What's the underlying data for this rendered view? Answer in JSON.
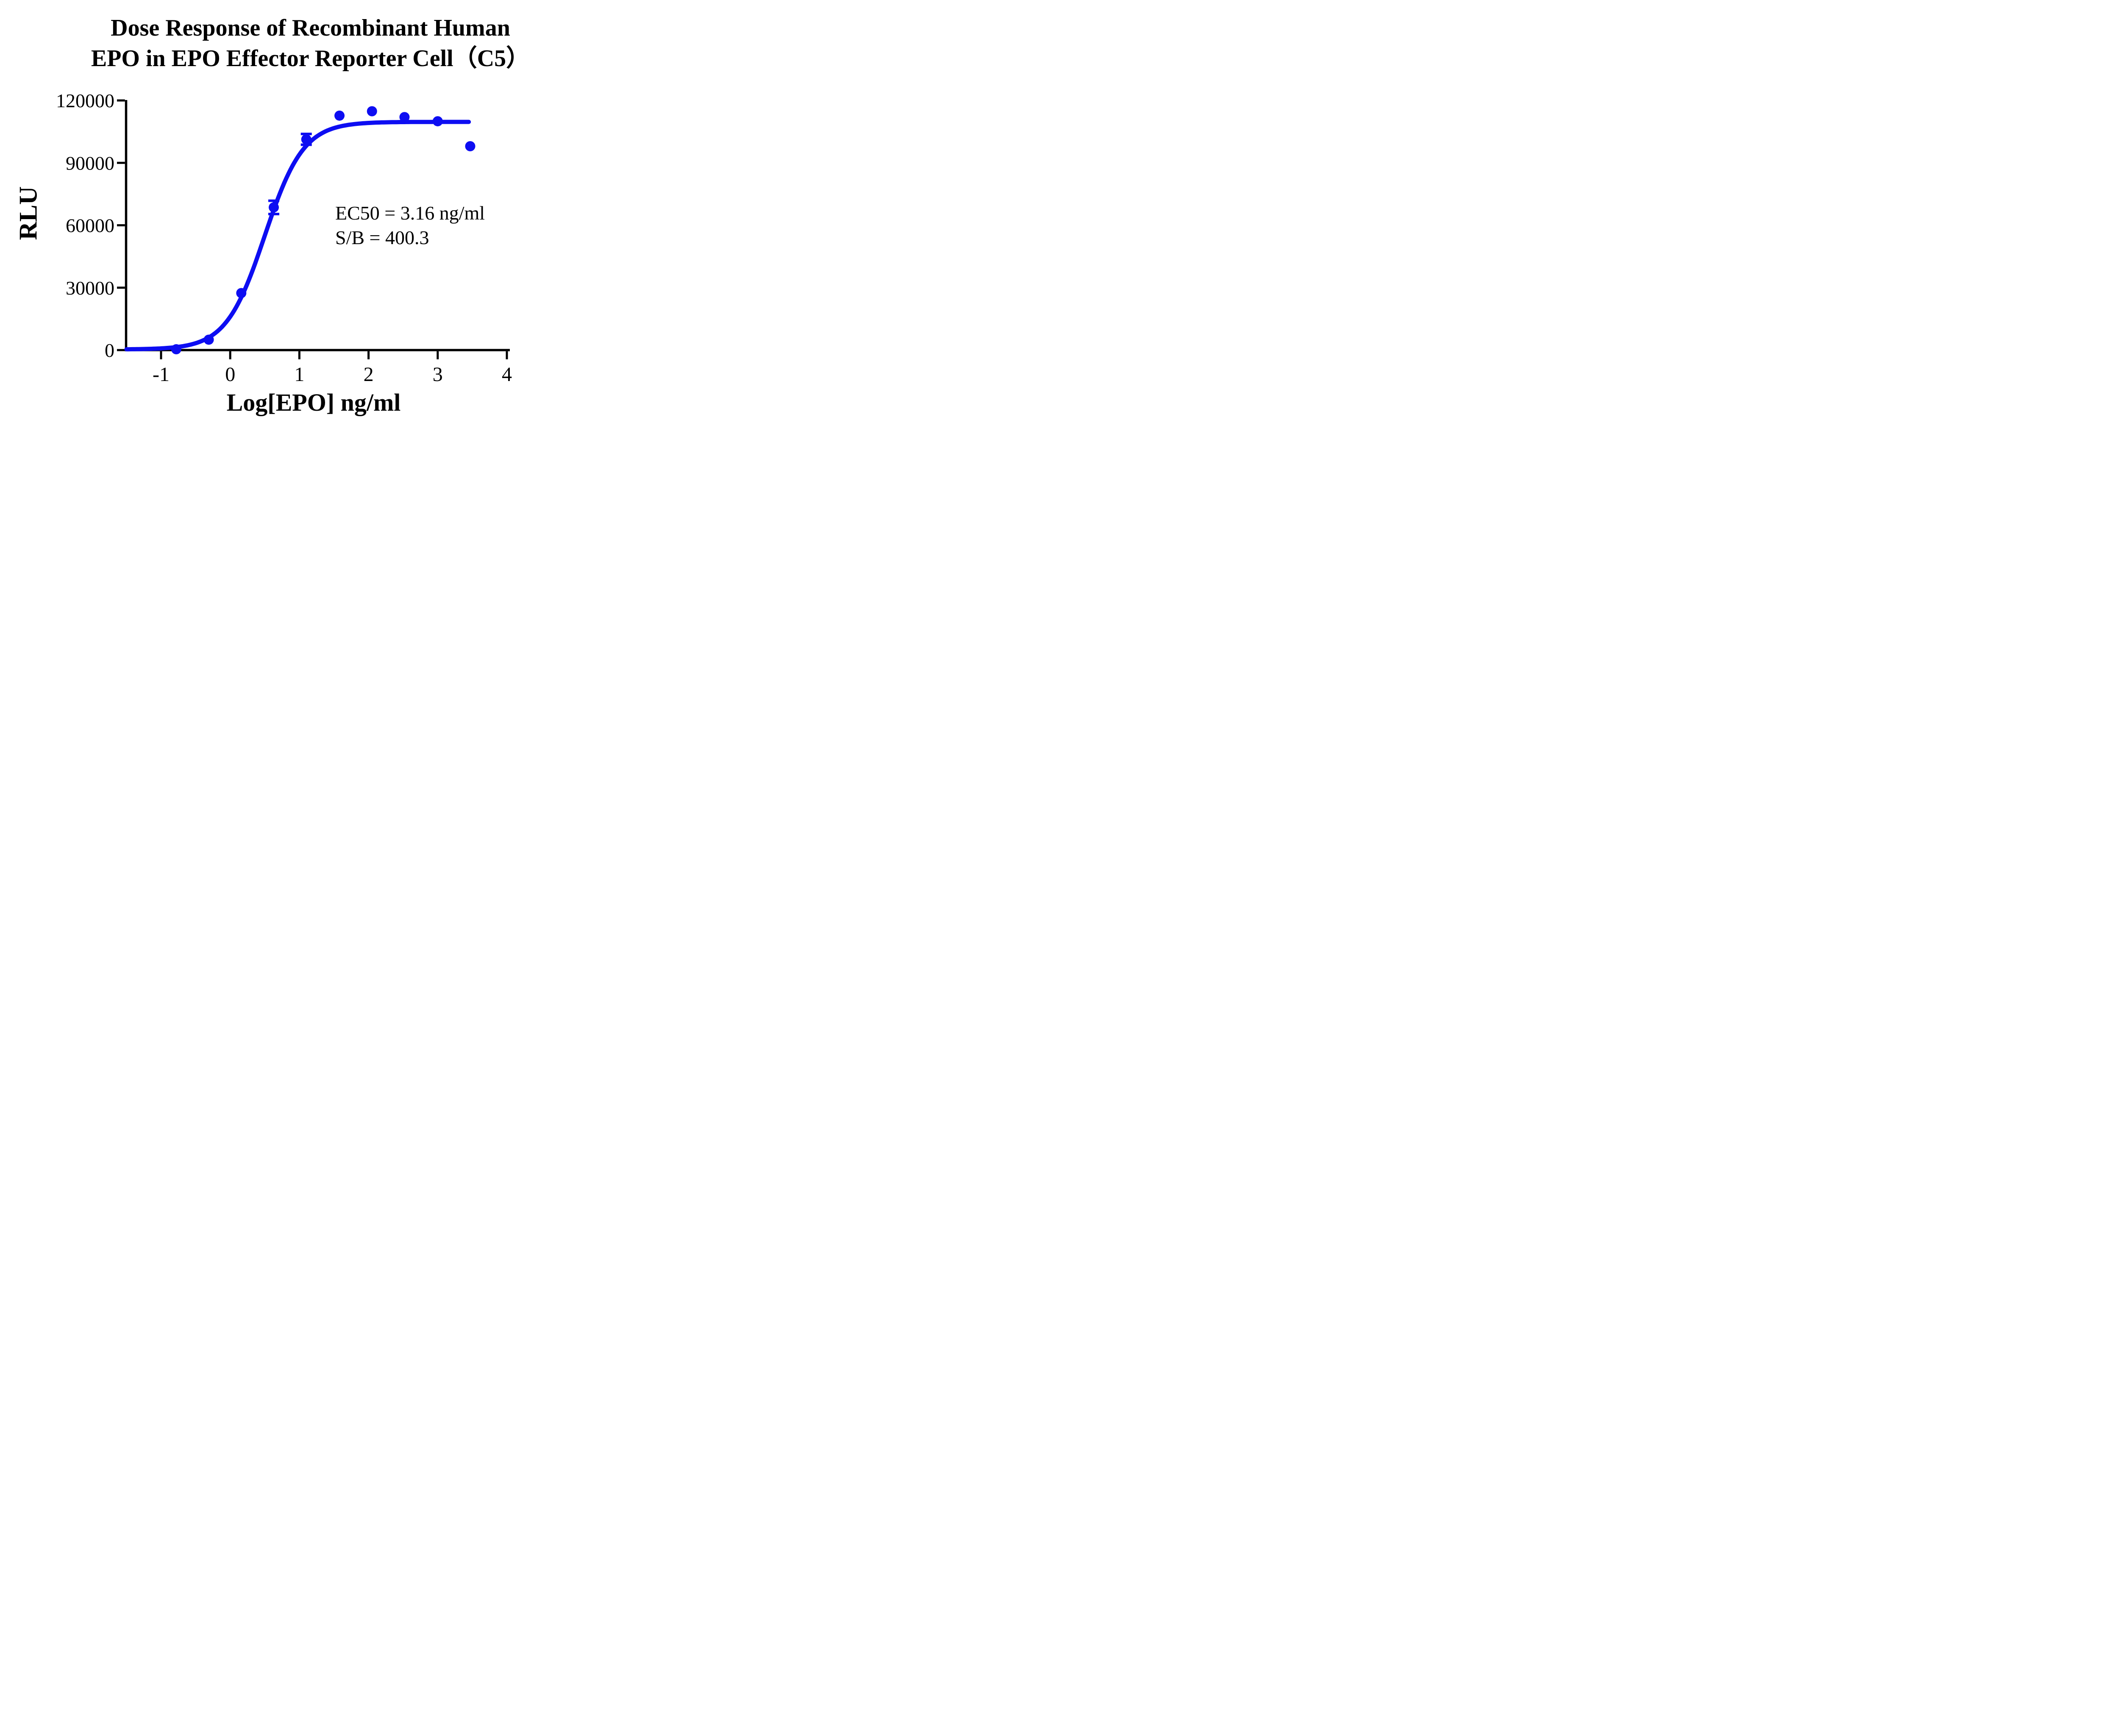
{
  "title": {
    "line1": "Dose Response of Recombinant Human",
    "line2": "EPO in EPO Effector Reporter Cell（C5）"
  },
  "annotation": {
    "line1": "EC50 = 3.16 ng/ml",
    "line2": "S/B = 400.3"
  },
  "colors": {
    "series_blue": "#0d0df2",
    "axis_black": "#000000",
    "background": "#ffffff"
  },
  "chart_data": {
    "type": "scatter",
    "title": "Dose Response of Recombinant Human EPO in EPO Effector Reporter Cell（C5）",
    "xlabel": "Log[EPO] ng/ml",
    "ylabel": "RLU",
    "xlim": [
      -1.5,
      4.05
    ],
    "ylim": [
      0,
      120000
    ],
    "x_ticks": [
      -1,
      0,
      1,
      2,
      3,
      4
    ],
    "y_ticks": [
      0,
      30000,
      60000,
      90000,
      120000
    ],
    "grid": false,
    "legend": "none",
    "ec50_ng_ml": 3.16,
    "signal_to_background": 400.3,
    "series": [
      {
        "name": "Recombinant Human EPO",
        "marker": "circle",
        "color": "#0d0df2",
        "points": [
          {
            "x": -0.78,
            "y": 400
          },
          {
            "x": -0.31,
            "y": 5000
          },
          {
            "x": 0.16,
            "y": 27400
          },
          {
            "x": 0.63,
            "y": 68600,
            "err": 3200
          },
          {
            "x": 1.1,
            "y": 101300,
            "err": 2600
          },
          {
            "x": 1.58,
            "y": 112700
          },
          {
            "x": 2.05,
            "y": 114800
          },
          {
            "x": 2.52,
            "y": 112000
          },
          {
            "x": 3.0,
            "y": 110000
          },
          {
            "x": 3.47,
            "y": 98000
          }
        ],
        "fit_curve": {
          "model": "4PL",
          "bottom": 300,
          "top": 109700,
          "log_ec50": 0.5,
          "hill": 1.55,
          "x_start": -1.5,
          "x_end": 3.465
        }
      }
    ]
  }
}
